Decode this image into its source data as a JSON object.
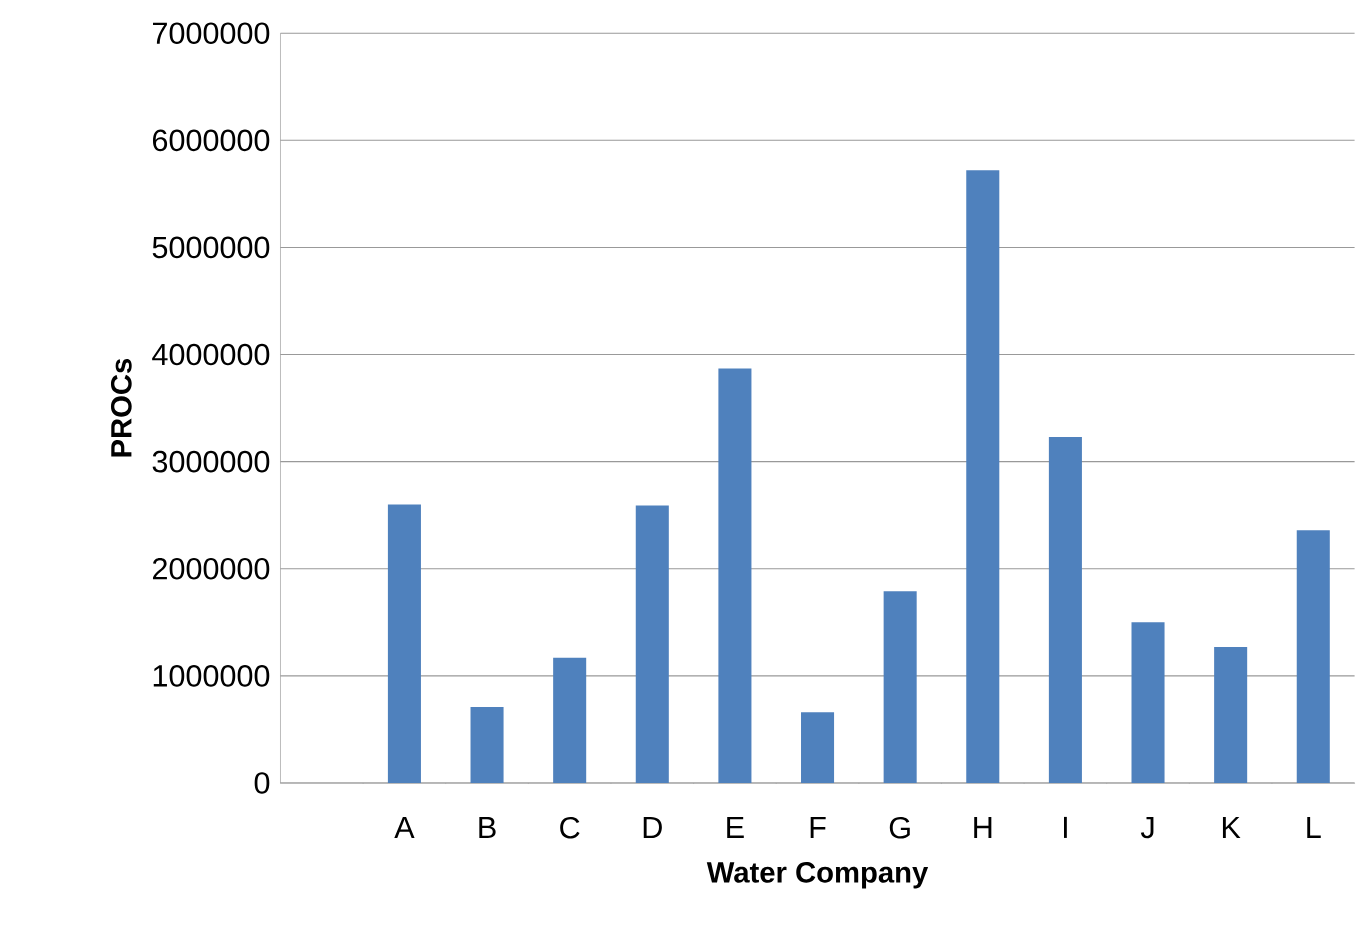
{
  "chart_data": {
    "type": "bar",
    "xlabel": "Water Company",
    "ylabel": "PROCs",
    "categories": [
      null,
      "A",
      "B",
      "C",
      "D",
      "E",
      "F",
      "G",
      "H",
      "I",
      "J",
      "K",
      "L"
    ],
    "values": [
      null,
      2600000,
      710000,
      1170000,
      2590000,
      3870000,
      660000,
      1790000,
      5720000,
      3230000,
      1500000,
      1270000,
      2360000
    ],
    "color": "#4f81bd",
    "ylim": [
      0,
      7000000
    ],
    "yticks": [
      0,
      1000000,
      2000000,
      3000000,
      4000000,
      5000000,
      6000000,
      7000000
    ],
    "grid": "y"
  }
}
